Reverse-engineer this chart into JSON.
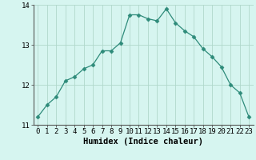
{
  "x": [
    0,
    1,
    2,
    3,
    4,
    5,
    6,
    7,
    8,
    9,
    10,
    11,
    12,
    13,
    14,
    15,
    16,
    17,
    18,
    19,
    20,
    21,
    22,
    23
  ],
  "y": [
    11.2,
    11.5,
    11.7,
    12.1,
    12.2,
    12.4,
    12.5,
    12.85,
    12.85,
    13.05,
    13.75,
    13.75,
    13.65,
    13.6,
    13.9,
    13.55,
    13.35,
    13.2,
    12.9,
    12.7,
    12.45,
    12.0,
    11.8,
    11.2
  ],
  "line_color": "#2e8b7a",
  "marker": "D",
  "marker_size": 2.5,
  "bg_color": "#d6f5f0",
  "grid_color": "#b0d8cc",
  "xlabel": "Humidex (Indice chaleur)",
  "ylim": [
    11.0,
    14.0
  ],
  "yticks": [
    11,
    12,
    13,
    14
  ],
  "xticks": [
    0,
    1,
    2,
    3,
    4,
    5,
    6,
    7,
    8,
    9,
    10,
    11,
    12,
    13,
    14,
    15,
    16,
    17,
    18,
    19,
    20,
    21,
    22,
    23
  ],
  "xlabel_fontsize": 7.5,
  "tick_fontsize": 6.5,
  "linewidth": 0.9
}
